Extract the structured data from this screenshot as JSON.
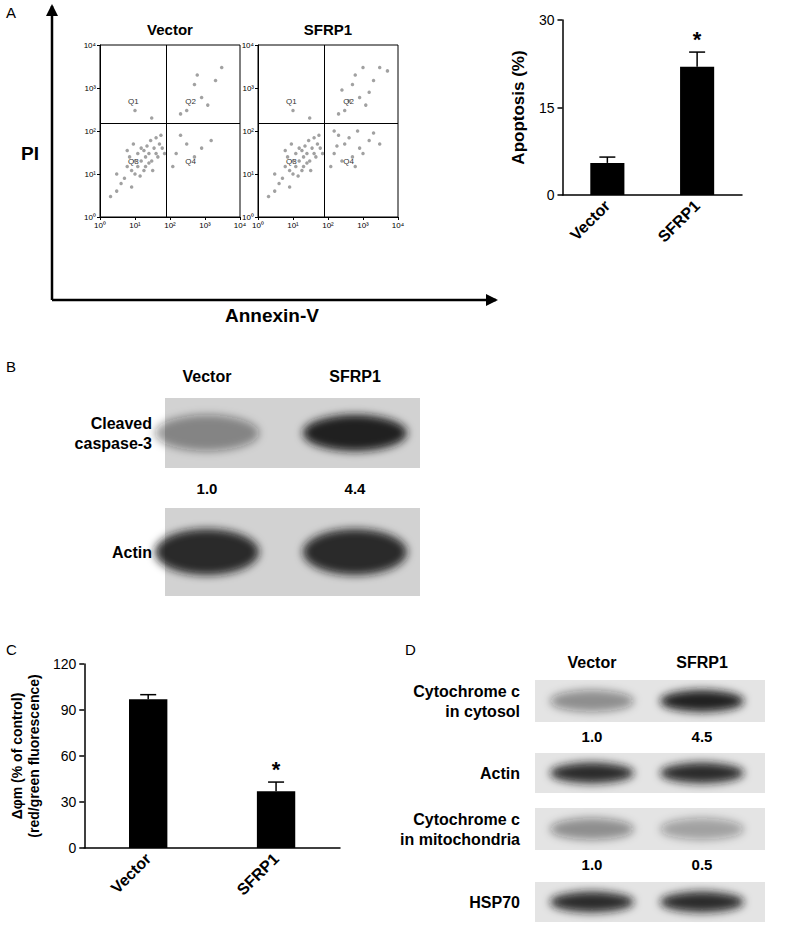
{
  "panel_labels": [
    "A",
    "B",
    "C",
    "D"
  ],
  "shared_axes": {
    "x_label": "Annexin-V",
    "y_label": "PI"
  },
  "chart_data": [
    {
      "type": "scatter",
      "title": "Vector",
      "log": true,
      "grid": false,
      "color": "#8a8a8a",
      "xlim": [
        1,
        10000
      ],
      "ylim": [
        1,
        10000
      ],
      "xticks": [
        {
          "value": 1,
          "label": "10⁰"
        },
        {
          "value": 10,
          "label": "10¹"
        },
        {
          "value": 100,
          "label": "10²"
        },
        {
          "value": 1000,
          "label": "10³"
        },
        {
          "value": 10000,
          "label": "10⁴"
        }
      ],
      "yticks": [
        {
          "value": 1,
          "label": "10⁰"
        },
        {
          "value": 10,
          "label": "10¹"
        },
        {
          "value": 100,
          "label": "10²"
        },
        {
          "value": 1000,
          "label": "10³"
        },
        {
          "value": 10000,
          "label": "10⁴"
        }
      ],
      "gates": {
        "x": 80,
        "y": 150
      },
      "quadrant_labels": [
        "Q1",
        "Q2",
        "Q3",
        "Q4"
      ],
      "x": [
        5,
        8,
        12,
        15,
        20,
        25,
        10,
        6,
        18,
        30,
        35,
        40,
        22,
        12,
        8,
        4,
        3,
        50,
        45,
        28,
        15,
        60,
        10,
        20,
        7,
        32,
        18,
        25,
        14,
        40,
        55,
        3,
        6,
        70,
        2,
        9,
        150,
        300,
        800,
        200,
        1500,
        120,
        500,
        300,
        800,
        2000,
        500,
        1200,
        3000,
        200,
        600,
        30,
        10
      ],
      "y": [
        8,
        12,
        15,
        20,
        25,
        30,
        20,
        15,
        12,
        20,
        40,
        30,
        45,
        30,
        5,
        6,
        10,
        50,
        25,
        60,
        40,
        40,
        10,
        15,
        25,
        12,
        35,
        18,
        9,
        70,
        80,
        4,
        35,
        30,
        3,
        50,
        30,
        50,
        40,
        80,
        60,
        15,
        25,
        300,
        600,
        1500,
        1200,
        400,
        3000,
        250,
        2000,
        200,
        300
      ]
    },
    {
      "type": "scatter",
      "title": "SFRP1",
      "log": true,
      "grid": false,
      "color": "#8a8a8a",
      "xlim": [
        1,
        10000
      ],
      "ylim": [
        1,
        10000
      ],
      "xticks": [
        {
          "value": 1,
          "label": "10⁰"
        },
        {
          "value": 10,
          "label": "10¹"
        },
        {
          "value": 100,
          "label": "10²"
        },
        {
          "value": 1000,
          "label": "10³"
        },
        {
          "value": 10000,
          "label": "10⁴"
        }
      ],
      "yticks": [
        {
          "value": 1,
          "label": "10⁰"
        },
        {
          "value": 10,
          "label": "10¹"
        },
        {
          "value": 100,
          "label": "10²"
        },
        {
          "value": 1000,
          "label": "10³"
        },
        {
          "value": 10000,
          "label": "10⁴"
        }
      ],
      "gates": {
        "x": 80,
        "y": 150
      },
      "quadrant_labels": [
        "Q1",
        "Q2",
        "Q3",
        "Q4"
      ],
      "x": [
        5,
        8,
        12,
        15,
        20,
        25,
        10,
        6,
        18,
        30,
        35,
        40,
        22,
        12,
        8,
        4,
        3,
        50,
        45,
        28,
        15,
        60,
        10,
        20,
        7,
        32,
        18,
        25,
        14,
        40,
        55,
        3,
        6,
        70,
        2,
        9,
        150,
        300,
        800,
        200,
        1500,
        120,
        500,
        400,
        1000,
        250,
        2000,
        700,
        3000,
        180,
        600,
        150,
        300,
        800,
        2000,
        500,
        1200,
        3000,
        200,
        600,
        1500,
        400,
        5000,
        1000,
        250,
        30,
        10
      ],
      "y": [
        8,
        12,
        15,
        20,
        25,
        30,
        20,
        15,
        12,
        20,
        40,
        30,
        45,
        30,
        5,
        6,
        10,
        50,
        25,
        60,
        40,
        40,
        10,
        15,
        25,
        12,
        35,
        18,
        9,
        70,
        80,
        4,
        35,
        30,
        3,
        50,
        30,
        50,
        40,
        80,
        60,
        15,
        25,
        70,
        30,
        20,
        90,
        100,
        50,
        45,
        15,
        100,
        300,
        600,
        1500,
        1200,
        400,
        3000,
        250,
        2000,
        800,
        500,
        2500,
        3000,
        900,
        200,
        300
      ]
    },
    {
      "type": "bar",
      "ylabel": [
        "Apoptosis (%)"
      ],
      "categories": [
        "Vector",
        "SFRP1"
      ],
      "values": [
        5.5,
        22
      ],
      "errors": [
        1.0,
        2.5
      ],
      "color": "#000000",
      "ylim": [
        0,
        30
      ],
      "yticks": [
        0,
        15,
        30
      ],
      "grid": false,
      "annotations": [
        {
          "category": "SFRP1",
          "text": "*"
        }
      ]
    },
    {
      "type": "bar",
      "ylabel": [
        "Δφm (% of control)",
        "(red/green fluorescence)"
      ],
      "categories": [
        "Vector",
        "SFRP1"
      ],
      "values": [
        97,
        37
      ],
      "errors": [
        3,
        6
      ],
      "color": "#000000",
      "ylim": [
        0,
        120
      ],
      "yticks": [
        0,
        30,
        60,
        90,
        120
      ],
      "grid": false,
      "annotations": [
        {
          "category": "SFRP1",
          "text": "*"
        }
      ]
    }
  ],
  "blots": [
    {
      "columns": [
        "Vector",
        "SFRP1"
      ],
      "rows": [
        {
          "label": [
            "Cleaved",
            "caspase-3"
          ],
          "quant": [
            "1.0",
            "4.4"
          ]
        },
        {
          "label": [
            "Actin"
          ]
        }
      ]
    },
    {
      "columns": [
        "Vector",
        "SFRP1"
      ],
      "rows": [
        {
          "label": [
            "Cytochrome c",
            "in cytosol"
          ],
          "quant": [
            "1.0",
            "4.5"
          ]
        },
        {
          "label": [
            "Actin"
          ]
        },
        {
          "label": [
            "Cytochrome c",
            "in mitochondria"
          ],
          "quant": [
            "1.0",
            "0.5"
          ]
        },
        {
          "label": [
            "HSP70"
          ]
        }
      ]
    }
  ]
}
